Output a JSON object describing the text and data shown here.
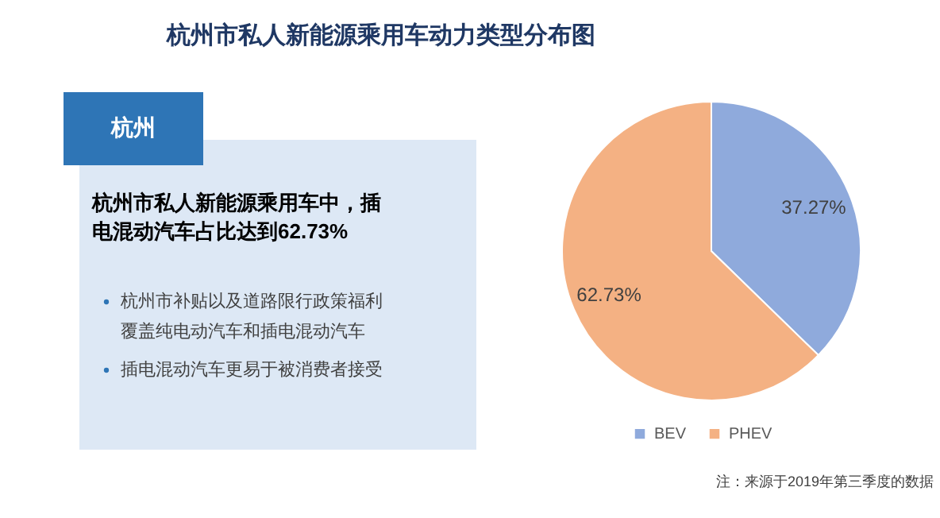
{
  "chart_data": {
    "type": "pie",
    "title": "杭州市私人新能源乘用车动力类型分布图",
    "categories": [
      "BEV",
      "PHEV"
    ],
    "values": [
      37.27,
      62.73
    ],
    "colors": [
      "#8faadc",
      "#f4b183"
    ],
    "value_labels": [
      "37.27%",
      "62.73%"
    ],
    "legend": "bottom",
    "annotations": [
      "杭州",
      "杭州市私人新能源乘用车中，插电混动汽车占比达到62.73%",
      "杭州市补贴以及道路限行政策福利覆盖纯电动汽车和插电混动汽车",
      "插电混动汽车更易于被消费者接受",
      "注：来源于2019年第三季度的数据"
    ]
  }
}
